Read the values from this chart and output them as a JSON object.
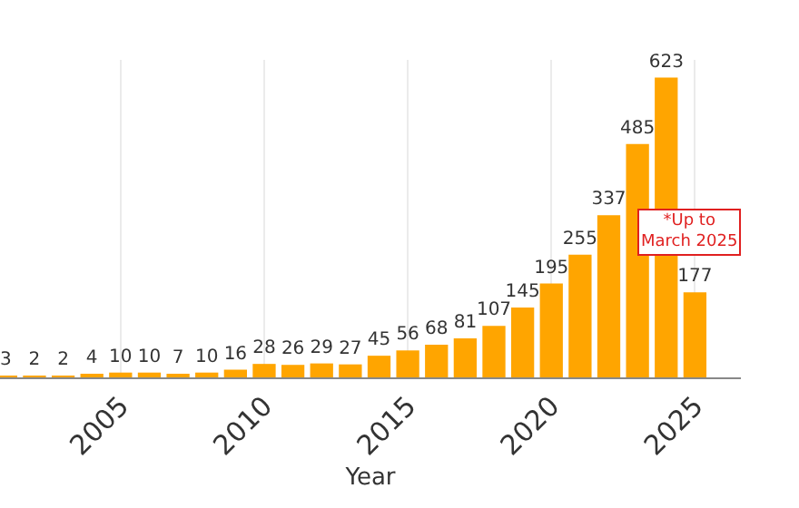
{
  "chart_data": {
    "type": "bar",
    "xlabel": "Year",
    "x": [
      2001,
      2002,
      2003,
      2004,
      2005,
      2006,
      2007,
      2008,
      2009,
      2010,
      2011,
      2012,
      2013,
      2014,
      2015,
      2016,
      2017,
      2018,
      2019,
      2020,
      2021,
      2022,
      2023,
      2024,
      2025
    ],
    "values": [
      3,
      2,
      2,
      4,
      10,
      10,
      7,
      10,
      16,
      28,
      26,
      29,
      27,
      45,
      56,
      68,
      81,
      107,
      145,
      195,
      255,
      337,
      485,
      623,
      177
    ],
    "color": "#ffa500",
    "data_labels": true,
    "xlim": [
      2000.8,
      2026.6
    ],
    "xticks": [
      2005,
      2010,
      2015,
      2020,
      2025
    ],
    "ylim": [
      0,
      660
    ],
    "tick_labels": "x",
    "grid": "x",
    "legend": false,
    "annotations": [
      "*Up to\nMarch 2025"
    ]
  }
}
